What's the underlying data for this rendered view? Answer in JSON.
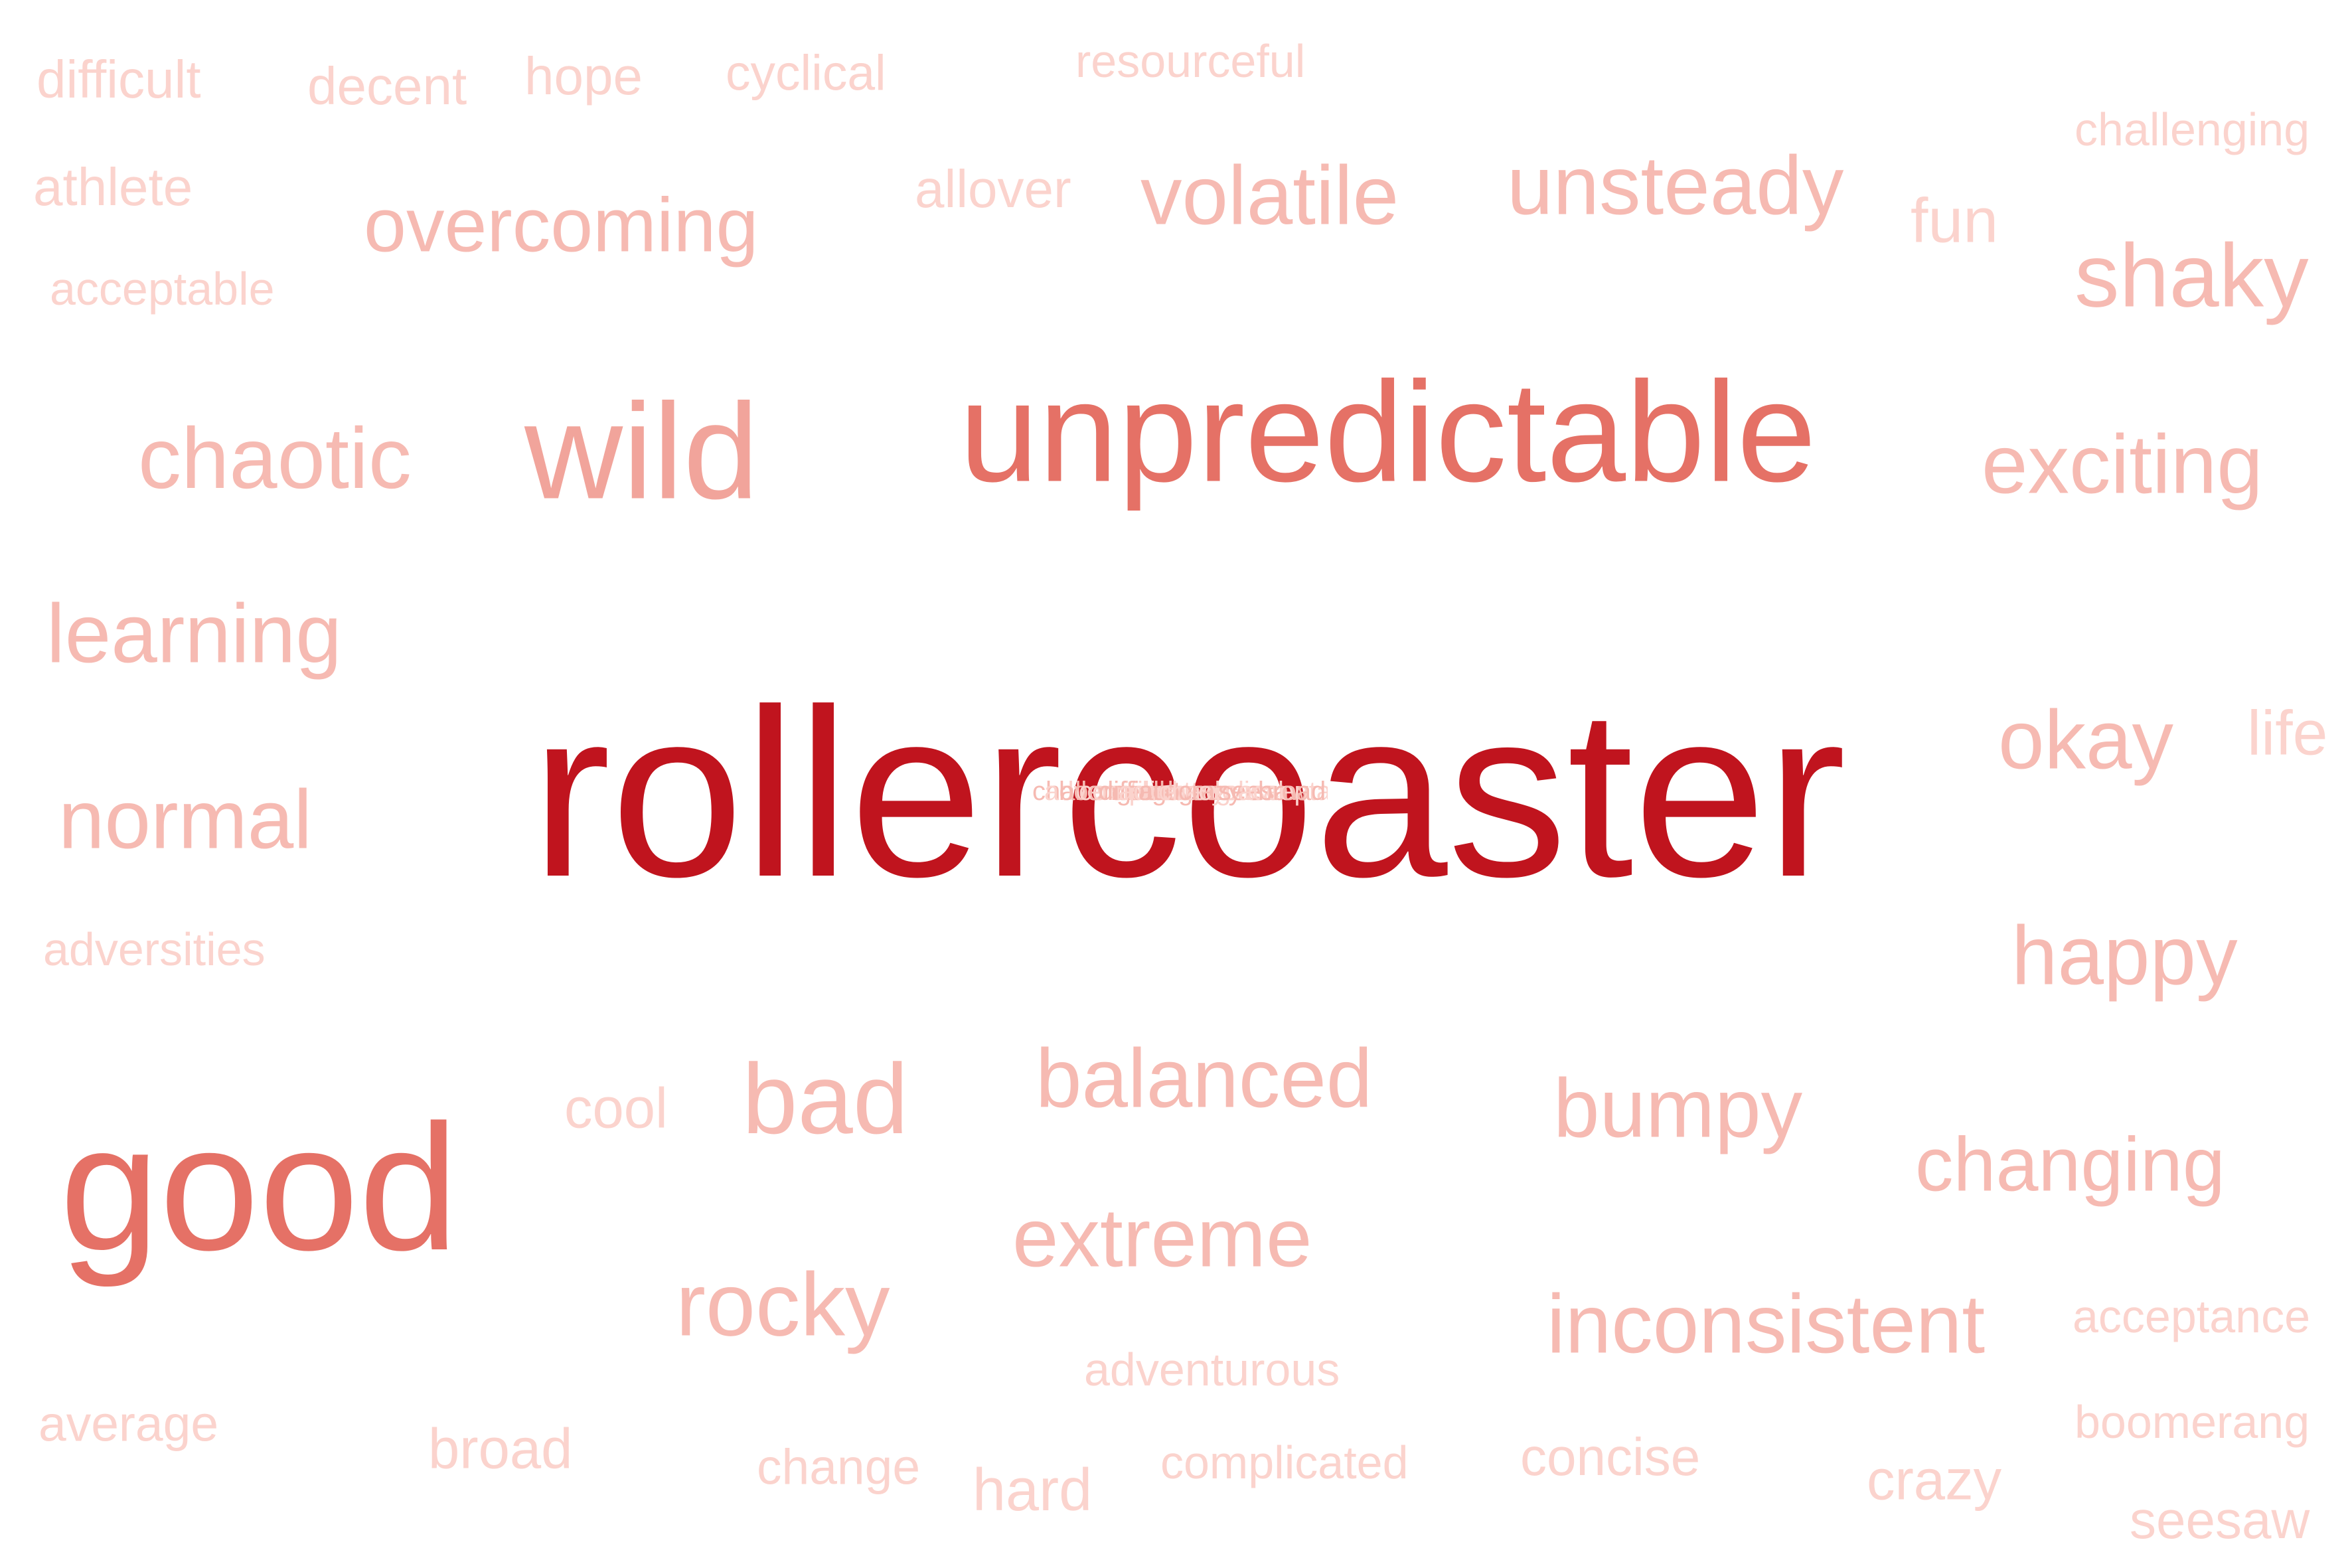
{
  "words": [
    {
      "text": "rollercoaster",
      "weight": 10,
      "color": "#c0141e"
    },
    {
      "text": "unpredictable",
      "weight": 7,
      "color": "#e57166"
    },
    {
      "text": "good",
      "weight": 7,
      "color": "#e57166"
    },
    {
      "text": "wild",
      "weight": 5,
      "color": "#f1a49b"
    },
    {
      "text": "chaotic",
      "weight": 3,
      "color": "#f6bab2"
    },
    {
      "text": "exciting",
      "weight": 3,
      "color": "#f6bab2"
    },
    {
      "text": "shaky",
      "weight": 3,
      "color": "#f6bab2"
    },
    {
      "text": "unsteady",
      "weight": 3,
      "color": "#f6bab2"
    },
    {
      "text": "volatile",
      "weight": 3,
      "color": "#f6bab2"
    },
    {
      "text": "overcoming",
      "weight": 3,
      "color": "#f6bab2"
    },
    {
      "text": "learning",
      "weight": 3,
      "color": "#f6bab2"
    },
    {
      "text": "normal",
      "weight": 3,
      "color": "#f6bab2"
    },
    {
      "text": "okay",
      "weight": 3,
      "color": "#f6bab2"
    },
    {
      "text": "happy",
      "weight": 3,
      "color": "#f6bab2"
    },
    {
      "text": "bad",
      "weight": 3,
      "color": "#f6bab2"
    },
    {
      "text": "balanced",
      "weight": 3,
      "color": "#f6bab2"
    },
    {
      "text": "bumpy",
      "weight": 3,
      "color": "#f6bab2"
    },
    {
      "text": "changing",
      "weight": 3,
      "color": "#f6bab2"
    },
    {
      "text": "extreme",
      "weight": 3,
      "color": "#f6bab2"
    },
    {
      "text": "rocky",
      "weight": 3,
      "color": "#f6bab2"
    },
    {
      "text": "inconsistent",
      "weight": 3,
      "color": "#f6bab2"
    },
    {
      "text": "difficult",
      "weight": 1,
      "color": "#fbd3cd"
    },
    {
      "text": "decent",
      "weight": 1,
      "color": "#fbd3cd"
    },
    {
      "text": "hope",
      "weight": 1,
      "color": "#fbd3cd"
    },
    {
      "text": "cyclical",
      "weight": 1,
      "color": "#fbd3cd"
    },
    {
      "text": "resourceful",
      "weight": 1,
      "color": "#fbd3cd"
    },
    {
      "text": "challenging",
      "weight": 1,
      "color": "#fbd3cd"
    },
    {
      "text": "athlete",
      "weight": 1,
      "color": "#fbd3cd"
    },
    {
      "text": "allover",
      "weight": 1,
      "color": "#fbd3cd"
    },
    {
      "text": "fun",
      "weight": 1,
      "color": "#fbd3cd"
    },
    {
      "text": "acceptable",
      "weight": 1,
      "color": "#fbd3cd"
    },
    {
      "text": "life",
      "weight": 1,
      "color": "#fbd3cd"
    },
    {
      "text": "adversities",
      "weight": 1,
      "color": "#fbd3cd"
    },
    {
      "text": "cool",
      "weight": 1,
      "color": "#fbd3cd"
    },
    {
      "text": "acceptance",
      "weight": 1,
      "color": "#fbd3cd"
    },
    {
      "text": "adventurous",
      "weight": 1,
      "color": "#fbd3cd"
    },
    {
      "text": "average",
      "weight": 1,
      "color": "#fbd3cd"
    },
    {
      "text": "boomerang",
      "weight": 1,
      "color": "#fbd3cd"
    },
    {
      "text": "broad",
      "weight": 1,
      "color": "#fbd3cd"
    },
    {
      "text": "change",
      "weight": 1,
      "color": "#fbd3cd"
    },
    {
      "text": "hard",
      "weight": 1,
      "color": "#fbd3cd"
    },
    {
      "text": "complicated",
      "weight": 1,
      "color": "#fbd3cd"
    },
    {
      "text": "concise",
      "weight": 1,
      "color": "#fbd3cd"
    },
    {
      "text": "crazy",
      "weight": 1,
      "color": "#fbd3cd"
    },
    {
      "text": "seesaw",
      "weight": 1,
      "color": "#fbd3cd"
    }
  ]
}
